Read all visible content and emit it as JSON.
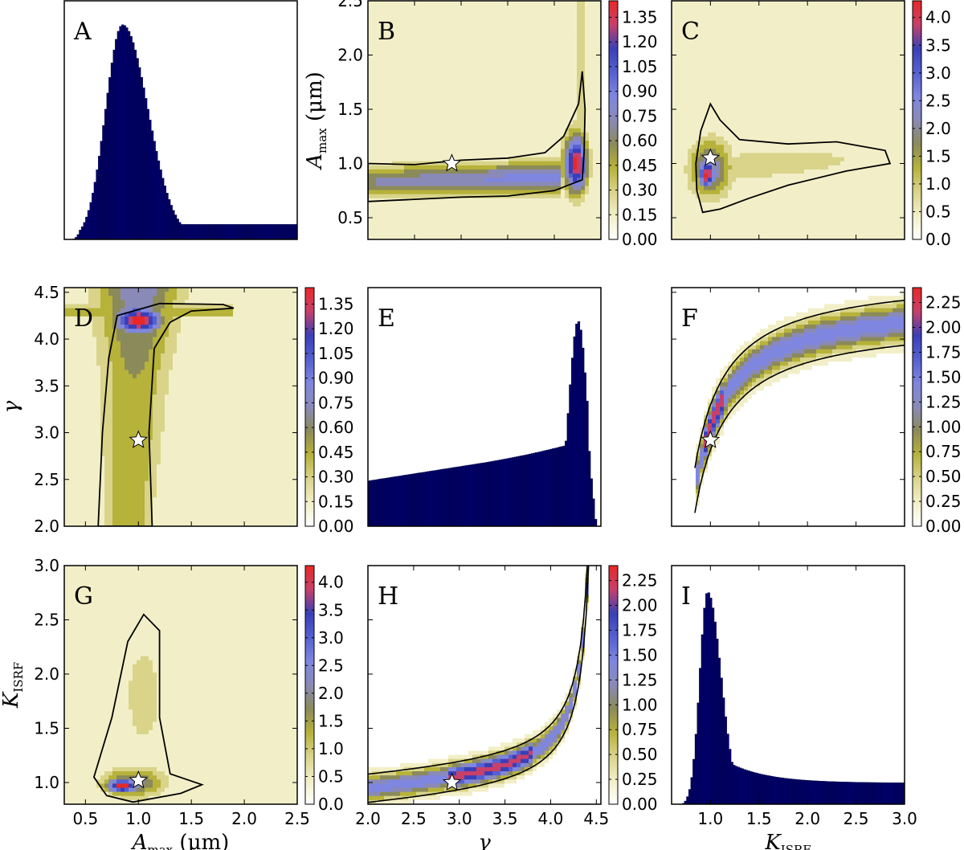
{
  "chart_data": [
    {
      "id": "A",
      "type": "bar",
      "letter": "A",
      "subtype": "histogram",
      "xlim": [
        0.3,
        2.5
      ],
      "peak_x": 0.85,
      "tail_level": 0.07,
      "bar_color": "#000066",
      "xticks": [],
      "yticks": []
    },
    {
      "id": "B",
      "type": "heatmap",
      "letter": "B",
      "xlim": [
        2.0,
        4.5
      ],
      "ylim": [
        0.3,
        2.5
      ],
      "yticks": [
        0.5,
        1.0,
        1.5,
        2.0,
        2.5
      ],
      "ytick_labels": [
        "0.5",
        "1.0",
        "1.5",
        "2.0",
        "2.5"
      ],
      "ylabel_main": "A",
      "ylabel_sub": "max",
      "ylabel_unit": "(μm)",
      "colorbar_ticks": [
        "0.00",
        "0.15",
        "0.30",
        "0.45",
        "0.60",
        "0.75",
        "0.90",
        "1.05",
        "1.20",
        "1.35"
      ],
      "colorbar_max": 1.45,
      "star": {
        "x": 2.9,
        "y": 1.0
      },
      "density_peak": {
        "x": 4.2,
        "y": 1.0
      }
    },
    {
      "id": "C",
      "type": "heatmap",
      "letter": "C",
      "xlim": [
        0.6,
        3.0
      ],
      "ylim": [
        0.3,
        2.5
      ],
      "colorbar_ticks": [
        "0.0",
        "0.5",
        "1.0",
        "1.5",
        "2.0",
        "2.5",
        "3.0",
        "3.5",
        "4.0"
      ],
      "colorbar_max": 4.3,
      "star": {
        "x": 1.0,
        "y": 1.05
      },
      "density_peak": {
        "x": 0.97,
        "y": 0.9
      }
    },
    {
      "id": "D",
      "type": "heatmap",
      "letter": "D",
      "xlim": [
        0.3,
        2.5
      ],
      "ylim": [
        2.0,
        4.55
      ],
      "yticks": [
        2.0,
        2.5,
        3.0,
        3.5,
        4.0,
        4.5
      ],
      "ytick_labels": [
        "2.0",
        "2.5",
        "3.0",
        "3.5",
        "4.0",
        "4.5"
      ],
      "ylabel_main": "γ",
      "colorbar_ticks": [
        "0.00",
        "0.15",
        "0.30",
        "0.45",
        "0.60",
        "0.75",
        "0.90",
        "1.05",
        "1.20",
        "1.35"
      ],
      "colorbar_max": 1.45,
      "star": {
        "x": 1.0,
        "y": 2.92
      },
      "density_peak": {
        "x": 1.0,
        "y": 4.2
      }
    },
    {
      "id": "E",
      "type": "bar",
      "letter": "E",
      "subtype": "histogram",
      "xlim": [
        2.0,
        4.55
      ],
      "peak_x": 4.3,
      "bar_color": "#000066",
      "xticks": [],
      "yticks": []
    },
    {
      "id": "F",
      "type": "heatmap",
      "letter": "F",
      "xlim": [
        0.6,
        3.0
      ],
      "ylim": [
        2.0,
        4.55
      ],
      "colorbar_ticks": [
        "0.00",
        "0.25",
        "0.50",
        "0.75",
        "1.00",
        "1.25",
        "1.50",
        "1.75",
        "2.00",
        "2.25"
      ],
      "colorbar_max": 2.4,
      "star": {
        "x": 1.0,
        "y": 2.92
      }
    },
    {
      "id": "G",
      "type": "heatmap",
      "letter": "G",
      "xlim": [
        0.3,
        2.5
      ],
      "ylim": [
        0.8,
        3.0
      ],
      "xticks": [
        0.5,
        1.0,
        1.5,
        2.0,
        2.5
      ],
      "xtick_labels": [
        "0.5",
        "1.0",
        "1.5",
        "2.0",
        "2.5"
      ],
      "yticks": [
        1.0,
        1.5,
        2.0,
        2.5,
        3.0
      ],
      "ytick_labels": [
        "1.0",
        "1.5",
        "2.0",
        "2.5",
        "3.0"
      ],
      "xlabel_main": "A",
      "xlabel_sub": "max",
      "xlabel_unit": "(μm)",
      "ylabel_main": "K",
      "ylabel_sub": "ISRF",
      "colorbar_ticks": [
        "0.0",
        "0.5",
        "1.0",
        "1.5",
        "2.0",
        "2.5",
        "3.0",
        "3.5",
        "4.0"
      ],
      "colorbar_max": 4.3,
      "star": {
        "x": 1.0,
        "y": 1.02
      },
      "density_peak": {
        "x": 0.85,
        "y": 0.97
      }
    },
    {
      "id": "H",
      "type": "heatmap",
      "letter": "H",
      "xlim": [
        2.0,
        4.55
      ],
      "ylim": [
        0.8,
        3.0
      ],
      "xticks": [
        2.0,
        2.5,
        3.0,
        3.5,
        4.0,
        4.5
      ],
      "xtick_labels": [
        "2.0",
        "2.5",
        "3.0",
        "3.5",
        "4.0",
        "4.5"
      ],
      "xlabel_main": "γ",
      "colorbar_ticks": [
        "0.00",
        "0.25",
        "0.50",
        "0.75",
        "1.00",
        "1.25",
        "1.50",
        "1.75",
        "2.00",
        "2.25"
      ],
      "colorbar_max": 2.4,
      "star": {
        "x": 2.92,
        "y": 1.0
      }
    },
    {
      "id": "I",
      "type": "bar",
      "letter": "I",
      "subtype": "histogram",
      "xlim": [
        0.6,
        3.0
      ],
      "peak_x": 0.97,
      "tail_level": 0.1,
      "bar_color": "#000066",
      "xticks": [
        1.0,
        1.5,
        2.0,
        2.5,
        3.0
      ],
      "xtick_labels": [
        "1.0",
        "1.5",
        "2.0",
        "2.5",
        "3.0"
      ],
      "xlabel_main": "K",
      "xlabel_sub": "ISRF",
      "yticks": []
    }
  ],
  "colormap": [
    "#ffffff",
    "#f2efc8",
    "#d9d48a",
    "#b6b23a",
    "#8b8a5a",
    "#8a8ab8",
    "#7f86df",
    "#5560d2",
    "#3a3fb8",
    "#c8406a",
    "#e82828"
  ]
}
